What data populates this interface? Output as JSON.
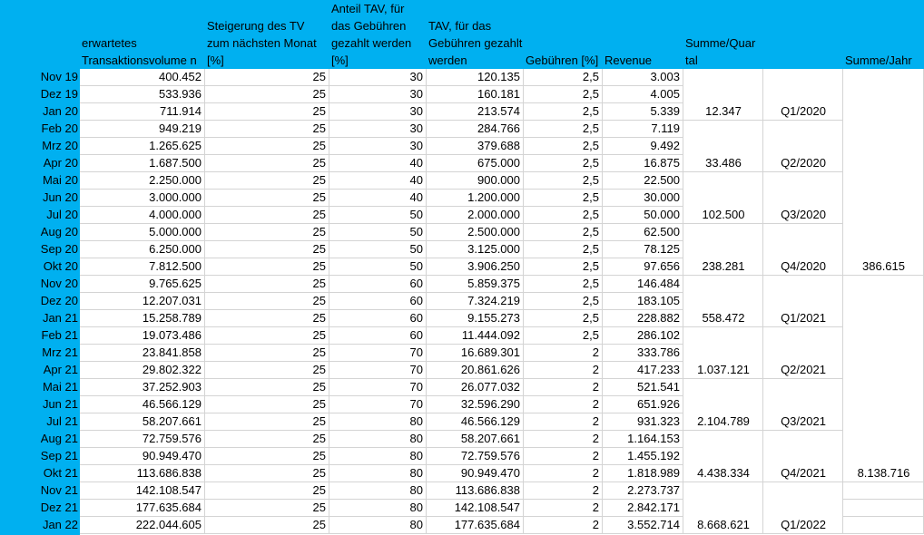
{
  "headers": [
    "",
    "erwartetes Transaktionsvolume n",
    "Steigerung des TV zum nächsten Monat [%]",
    "Anteil TAV, für das Gebühren gezahlt werden [%]",
    "TAV, für das Gebühren gezahlt werden",
    "Gebühren [%]",
    "Revenue",
    "Summe/Quar tal",
    "",
    "Summe/Jahr"
  ],
  "rows": [
    {
      "month": "Nov 19",
      "tv": "400.452",
      "growth": "25",
      "share": "30",
      "tav": "120.135",
      "fee": "2,5",
      "revenue": "3.003"
    },
    {
      "month": "Dez 19",
      "tv": "533.936",
      "growth": "25",
      "share": "30",
      "tav": "160.181",
      "fee": "2,5",
      "revenue": "4.005"
    },
    {
      "month": "Jan 20",
      "tv": "711.914",
      "growth": "25",
      "share": "30",
      "tav": "213.574",
      "fee": "2,5",
      "revenue": "5.339"
    },
    {
      "month": "Feb 20",
      "tv": "949.219",
      "growth": "25",
      "share": "30",
      "tav": "284.766",
      "fee": "2,5",
      "revenue": "7.119"
    },
    {
      "month": "Mrz 20",
      "tv": "1.265.625",
      "growth": "25",
      "share": "30",
      "tav": "379.688",
      "fee": "2,5",
      "revenue": "9.492"
    },
    {
      "month": "Apr 20",
      "tv": "1.687.500",
      "growth": "25",
      "share": "40",
      "tav": "675.000",
      "fee": "2,5",
      "revenue": "16.875"
    },
    {
      "month": "Mai 20",
      "tv": "2.250.000",
      "growth": "25",
      "share": "40",
      "tav": "900.000",
      "fee": "2,5",
      "revenue": "22.500"
    },
    {
      "month": "Jun 20",
      "tv": "3.000.000",
      "growth": "25",
      "share": "40",
      "tav": "1.200.000",
      "fee": "2,5",
      "revenue": "30.000"
    },
    {
      "month": "Jul 20",
      "tv": "4.000.000",
      "growth": "25",
      "share": "50",
      "tav": "2.000.000",
      "fee": "2,5",
      "revenue": "50.000"
    },
    {
      "month": "Aug 20",
      "tv": "5.000.000",
      "growth": "25",
      "share": "50",
      "tav": "2.500.000",
      "fee": "2,5",
      "revenue": "62.500"
    },
    {
      "month": "Sep 20",
      "tv": "6.250.000",
      "growth": "25",
      "share": "50",
      "tav": "3.125.000",
      "fee": "2,5",
      "revenue": "78.125"
    },
    {
      "month": "Okt 20",
      "tv": "7.812.500",
      "growth": "25",
      "share": "50",
      "tav": "3.906.250",
      "fee": "2,5",
      "revenue": "97.656"
    },
    {
      "month": "Nov 20",
      "tv": "9.765.625",
      "growth": "25",
      "share": "60",
      "tav": "5.859.375",
      "fee": "2,5",
      "revenue": "146.484"
    },
    {
      "month": "Dez 20",
      "tv": "12.207.031",
      "growth": "25",
      "share": "60",
      "tav": "7.324.219",
      "fee": "2,5",
      "revenue": "183.105"
    },
    {
      "month": "Jan 21",
      "tv": "15.258.789",
      "growth": "25",
      "share": "60",
      "tav": "9.155.273",
      "fee": "2,5",
      "revenue": "228.882"
    },
    {
      "month": "Feb 21",
      "tv": "19.073.486",
      "growth": "25",
      "share": "60",
      "tav": "11.444.092",
      "fee": "2,5",
      "revenue": "286.102"
    },
    {
      "month": "Mrz 21",
      "tv": "23.841.858",
      "growth": "25",
      "share": "70",
      "tav": "16.689.301",
      "fee": "2",
      "revenue": "333.786"
    },
    {
      "month": "Apr 21",
      "tv": "29.802.322",
      "growth": "25",
      "share": "70",
      "tav": "20.861.626",
      "fee": "2",
      "revenue": "417.233"
    },
    {
      "month": "Mai 21",
      "tv": "37.252.903",
      "growth": "25",
      "share": "70",
      "tav": "26.077.032",
      "fee": "2",
      "revenue": "521.541"
    },
    {
      "month": "Jun 21",
      "tv": "46.566.129",
      "growth": "25",
      "share": "70",
      "tav": "32.596.290",
      "fee": "2",
      "revenue": "651.926"
    },
    {
      "month": "Jul 21",
      "tv": "58.207.661",
      "growth": "25",
      "share": "80",
      "tav": "46.566.129",
      "fee": "2",
      "revenue": "931.323"
    },
    {
      "month": "Aug 21",
      "tv": "72.759.576",
      "growth": "25",
      "share": "80",
      "tav": "58.207.661",
      "fee": "2",
      "revenue": "1.164.153"
    },
    {
      "month": "Sep 21",
      "tv": "90.949.470",
      "growth": "25",
      "share": "80",
      "tav": "72.759.576",
      "fee": "2",
      "revenue": "1.455.192"
    },
    {
      "month": "Okt 21",
      "tv": "113.686.838",
      "growth": "25",
      "share": "80",
      "tav": "90.949.470",
      "fee": "2",
      "revenue": "1.818.989"
    },
    {
      "month": "Nov 21",
      "tv": "142.108.547",
      "growth": "25",
      "share": "80",
      "tav": "113.686.838",
      "fee": "2",
      "revenue": "2.273.737"
    },
    {
      "month": "Dez 21",
      "tv": "177.635.684",
      "growth": "25",
      "share": "80",
      "tav": "142.108.547",
      "fee": "2",
      "revenue": "2.842.171"
    },
    {
      "month": "Jan 22",
      "tv": "222.044.605",
      "growth": "25",
      "share": "80",
      "tav": "177.635.684",
      "fee": "2",
      "revenue": "3.552.714"
    }
  ],
  "quarters": [
    {
      "row": 2,
      "sum": "12.347",
      "label": "Q1/2020"
    },
    {
      "row": 5,
      "sum": "33.486",
      "label": "Q2/2020"
    },
    {
      "row": 8,
      "sum": "102.500",
      "label": "Q3/2020"
    },
    {
      "row": 11,
      "sum": "238.281",
      "label": "Q4/2020"
    },
    {
      "row": 14,
      "sum": "558.472",
      "label": "Q1/2021"
    },
    {
      "row": 17,
      "sum": "1.037.121",
      "label": "Q2/2021"
    },
    {
      "row": 20,
      "sum": "2.104.789",
      "label": "Q3/2021"
    },
    {
      "row": 23,
      "sum": "4.438.334",
      "label": "Q4/2021"
    },
    {
      "row": 26,
      "sum": "8.668.621",
      "label": "Q1/2022"
    }
  ],
  "years": [
    {
      "row": 11,
      "sum": "386.615"
    },
    {
      "row": 23,
      "sum": "8.138.716"
    }
  ],
  "colors": {
    "header": "#00B0F0",
    "grid": "#d4d4d4"
  }
}
